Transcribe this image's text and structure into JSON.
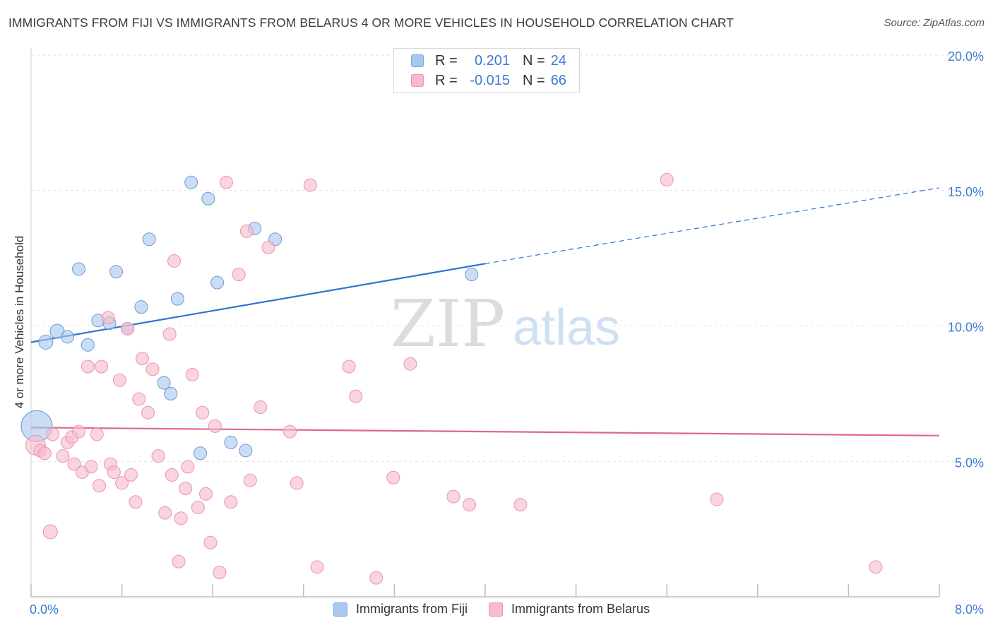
{
  "title": "IMMIGRANTS FROM FIJI VS IMMIGRANTS FROM BELARUS 4 OR MORE VEHICLES IN HOUSEHOLD CORRELATION CHART",
  "source": "Source: ZipAtlas.com",
  "watermark": {
    "zip": "ZIP",
    "atlas": "atlas"
  },
  "legend": {
    "r_label": "R =",
    "n_label": "N =",
    "rows": [
      {
        "r": "0.201",
        "n": "24",
        "color": "#a9c8ef",
        "border": "#7aa6de"
      },
      {
        "r": "-0.015",
        "n": "66",
        "color": "#f6bccb",
        "border": "#ee93ab"
      }
    ]
  },
  "chart_data": {
    "type": "scatter",
    "xlabel": "",
    "ylabel": "4 or more Vehicles in Household",
    "xlim": [
      0,
      8
    ],
    "ylim": [
      0,
      20
    ],
    "x_tick_labels": [
      "0.0%",
      "8.0%"
    ],
    "y_tick_labels": [
      "20.0%",
      "15.0%",
      "10.0%",
      "5.0%"
    ],
    "y_ticks": [
      20,
      15,
      10,
      5
    ],
    "grid": true,
    "series": [
      {
        "name": "Immigrants from Fiji",
        "color": "#a9c8ef",
        "stroke": "#6b9ad6",
        "line_color": "#2f74cf",
        "trend": {
          "x0": 0,
          "y0": 9.4,
          "x1": 4,
          "y1": 12.3,
          "extend_to": 8,
          "extend_y": 15.1
        },
        "points": [
          [
            0.05,
            6.3,
            22
          ],
          [
            0.13,
            9.4,
            10
          ],
          [
            0.23,
            9.8,
            10
          ],
          [
            0.32,
            9.6,
            9
          ],
          [
            0.42,
            12.1,
            9
          ],
          [
            0.5,
            9.3,
            9
          ],
          [
            0.59,
            10.2,
            9
          ],
          [
            0.69,
            10.1,
            9
          ],
          [
            0.75,
            12.0,
            9
          ],
          [
            0.85,
            9.9,
            9
          ],
          [
            0.97,
            10.7,
            9
          ],
          [
            1.04,
            13.2,
            9
          ],
          [
            1.17,
            7.9,
            9
          ],
          [
            1.23,
            7.5,
            9
          ],
          [
            1.29,
            11.0,
            9
          ],
          [
            1.41,
            15.3,
            9
          ],
          [
            1.49,
            5.3,
            9
          ],
          [
            1.56,
            14.7,
            9
          ],
          [
            1.64,
            11.6,
            9
          ],
          [
            1.76,
            5.7,
            9
          ],
          [
            1.89,
            5.4,
            9
          ],
          [
            1.97,
            13.6,
            9
          ],
          [
            2.15,
            13.2,
            9
          ],
          [
            3.88,
            11.9,
            9
          ]
        ]
      },
      {
        "name": "Immigrants from Belarus",
        "color": "#f6bccb",
        "stroke": "#ec93ab",
        "line_color": "#e0668d",
        "trend": {
          "x0": 0,
          "y0": 6.25,
          "x1": 8,
          "y1": 5.95
        },
        "points": [
          [
            0.04,
            5.6,
            14
          ],
          [
            0.08,
            5.4,
            9
          ],
          [
            0.12,
            5.3,
            9
          ],
          [
            0.19,
            6.0,
            9
          ],
          [
            0.17,
            2.4,
            10
          ],
          [
            0.28,
            5.2,
            9
          ],
          [
            0.32,
            5.7,
            9
          ],
          [
            0.36,
            5.9,
            9
          ],
          [
            0.38,
            4.9,
            9
          ],
          [
            0.42,
            6.1,
            9
          ],
          [
            0.45,
            4.6,
            9
          ],
          [
            0.5,
            8.5,
            9
          ],
          [
            0.53,
            4.8,
            9
          ],
          [
            0.58,
            6.0,
            9
          ],
          [
            0.6,
            4.1,
            9
          ],
          [
            0.62,
            8.5,
            9
          ],
          [
            0.68,
            10.3,
            9
          ],
          [
            0.7,
            4.9,
            9
          ],
          [
            0.73,
            4.6,
            9
          ],
          [
            0.78,
            8.0,
            9
          ],
          [
            0.8,
            4.2,
            9
          ],
          [
            0.85,
            9.9,
            9
          ],
          [
            0.88,
            4.5,
            9
          ],
          [
            0.92,
            3.5,
            9
          ],
          [
            0.95,
            7.3,
            9
          ],
          [
            0.98,
            8.8,
            9
          ],
          [
            1.03,
            6.8,
            9
          ],
          [
            1.07,
            8.4,
            9
          ],
          [
            1.12,
            5.2,
            9
          ],
          [
            1.18,
            3.1,
            9
          ],
          [
            1.22,
            9.7,
            9
          ],
          [
            1.24,
            4.5,
            9
          ],
          [
            1.26,
            12.4,
            9
          ],
          [
            1.3,
            1.3,
            9
          ],
          [
            1.32,
            2.9,
            9
          ],
          [
            1.36,
            4.0,
            9
          ],
          [
            1.38,
            4.8,
            9
          ],
          [
            1.42,
            8.2,
            9
          ],
          [
            1.47,
            3.3,
            9
          ],
          [
            1.51,
            6.8,
            9
          ],
          [
            1.54,
            3.8,
            9
          ],
          [
            1.58,
            2.0,
            9
          ],
          [
            1.62,
            6.3,
            9
          ],
          [
            1.66,
            0.9,
            9
          ],
          [
            1.72,
            15.3,
            9
          ],
          [
            1.76,
            3.5,
            9
          ],
          [
            1.83,
            11.9,
            9
          ],
          [
            1.9,
            13.5,
            9
          ],
          [
            1.93,
            4.3,
            9
          ],
          [
            2.02,
            7.0,
            9
          ],
          [
            2.09,
            12.9,
            9
          ],
          [
            2.28,
            6.1,
            9
          ],
          [
            2.34,
            4.2,
            9
          ],
          [
            2.46,
            15.2,
            9
          ],
          [
            2.52,
            1.1,
            9
          ],
          [
            2.8,
            8.5,
            9
          ],
          [
            2.86,
            7.4,
            9
          ],
          [
            3.04,
            0.7,
            9
          ],
          [
            3.19,
            4.4,
            9
          ],
          [
            3.34,
            8.6,
            9
          ],
          [
            3.72,
            3.7,
            9
          ],
          [
            3.86,
            3.4,
            9
          ],
          [
            4.31,
            3.4,
            9
          ],
          [
            6.04,
            3.6,
            9
          ],
          [
            5.6,
            15.4,
            9
          ],
          [
            7.44,
            1.1,
            9
          ]
        ]
      }
    ]
  }
}
